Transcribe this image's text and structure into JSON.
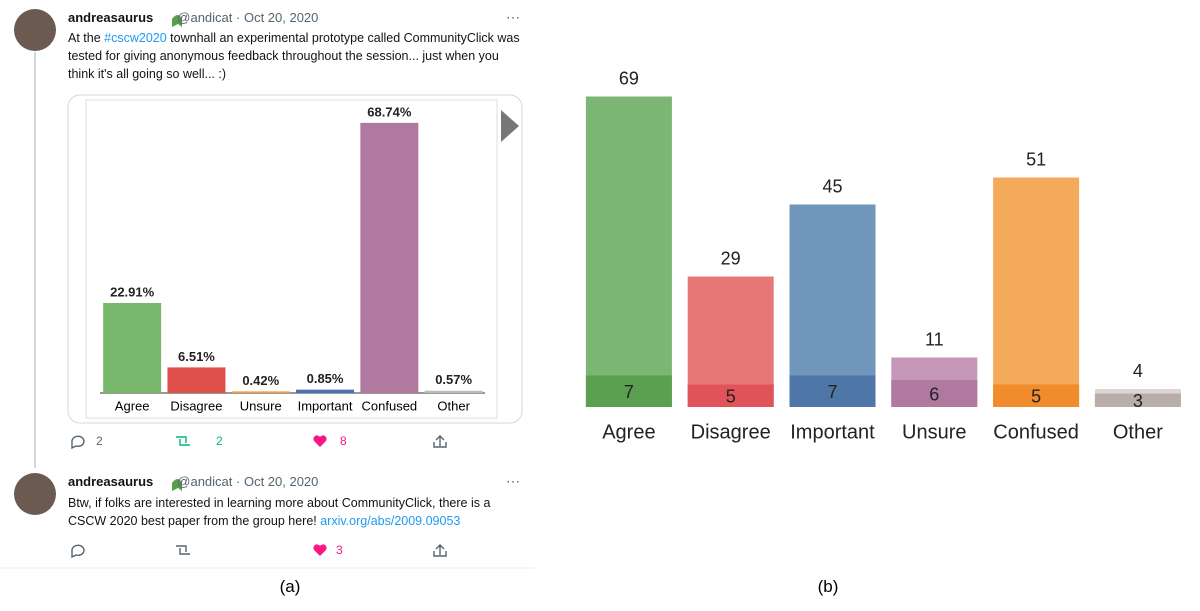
{
  "tweets": [
    {
      "name": "andreasaurus",
      "handle": "@andicat",
      "date": "Oct 20, 2020",
      "text": [
        "At the ",
        "#cscw2020",
        " townhall an experimental prototype called CommunityClick was tested for giving anonymous feedback throughout the session... just when you think it's all going so well... :)"
      ],
      "replies": "2",
      "retweets": "2",
      "likes": "8"
    },
    {
      "name": "andreasaurus",
      "handle": "@andicat",
      "date": "Oct 20, 2020",
      "text": [
        "Btw, if folks are interested in learning more about CommunityClick, there is a CSCW 2020 best paper from the group here! ",
        "arxiv.org/abs/2009.09053"
      ],
      "likes": "3"
    }
  ],
  "captions": [
    "(a)",
    "(b)"
  ],
  "chart_data": [
    {
      "type": "bar",
      "categories": [
        "Agree",
        "Disagree",
        "Unsure",
        "Important",
        "Confused",
        "Other"
      ],
      "values": [
        22.91,
        6.51,
        0.42,
        0.85,
        68.74,
        0.57
      ],
      "value_labels": [
        "22.91%",
        "6.51%",
        "0.42%",
        "0.85%",
        "68.74%",
        "0.57%"
      ],
      "colors": [
        "#77b86d",
        "#e0504a",
        "#f0a040",
        "#4a72b0",
        "#b07aa0",
        "#bbbbbb"
      ]
    },
    {
      "type": "overlap-bar",
      "categories": [
        "Agree",
        "Disagree",
        "Important",
        "Unsure",
        "Confused",
        "Other"
      ],
      "series": [
        {
          "values": [
            69,
            29,
            45,
            11,
            51,
            4
          ],
          "colors": [
            "#7bb674",
            "#e87878",
            "#7096bb",
            "#c497b8",
            "#f5a95a",
            "#ddd6d3"
          ]
        },
        {
          "values": [
            7,
            5,
            7,
            6,
            5,
            3
          ],
          "colors": [
            "#5aa050",
            "#e05358",
            "#4e76a6",
            "#b07aa0",
            "#f08c2c",
            "#b8ada8"
          ]
        }
      ]
    }
  ]
}
